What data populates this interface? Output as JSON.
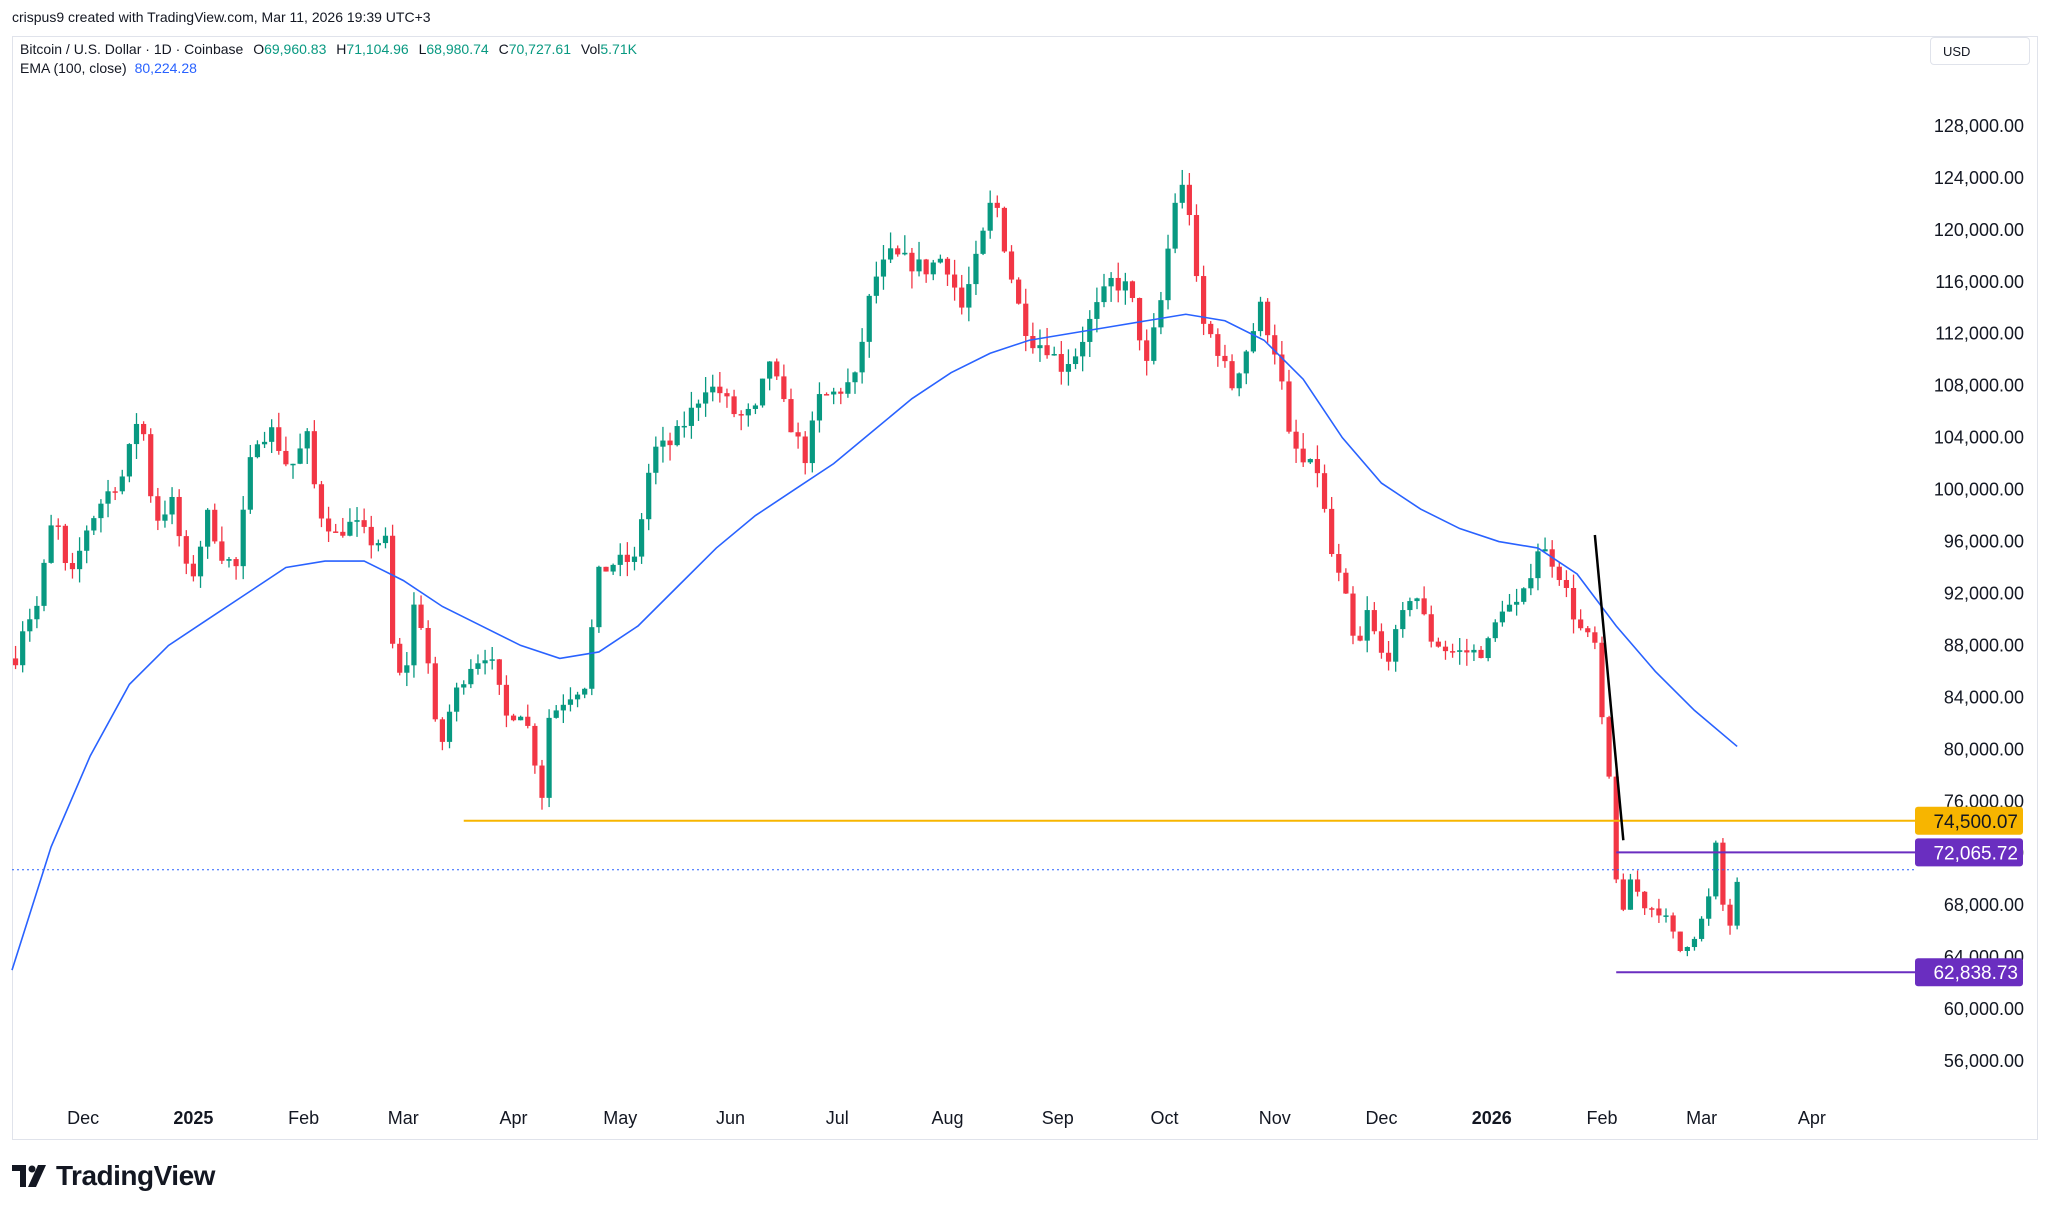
{
  "header": {
    "credit": "crispus9 created with TradingView.com, Mar 11, 2026 19:39 UTC+3"
  },
  "legend": {
    "symbol": "Bitcoin / U.S. Dollar · 1D · Coinbase",
    "open_label": "O",
    "open": "69,960.83",
    "high_label": "H",
    "high": "71,104.96",
    "low_label": "L",
    "low": "68,980.74",
    "close_label": "C",
    "close": "70,727.61",
    "vol_label": "Vol",
    "vol": "5.71K",
    "ema_label": "EMA (100, close)",
    "ema_value": "80,224.28"
  },
  "currency": "USD",
  "footer": {
    "logo_text": "TradingView"
  },
  "colors": {
    "up": "#089981",
    "down": "#f23645",
    "ema": "#2962ff",
    "support": "#f7b500",
    "range": "#6a2ec0",
    "trend": "#000000",
    "last_price": "#2962ff"
  },
  "chart_data": {
    "type": "candlestick",
    "title": "Bitcoin / U.S. Dollar · 1D · Coinbase",
    "ylim": [
      53000,
      132000
    ],
    "y_ticks": [
      "128,000.00",
      "124,000.00",
      "120,000.00",
      "116,000.00",
      "112,000.00",
      "108,000.00",
      "104,000.00",
      "100,000.00",
      "96,000.00",
      "92,000.00",
      "88,000.00",
      "84,000.00",
      "80,000.00",
      "76,000.00",
      "72,000.00",
      "68,000.00",
      "64,000.00",
      "60,000.00",
      "56,000.00"
    ],
    "y_tick_values": [
      128000,
      124000,
      120000,
      116000,
      112000,
      108000,
      104000,
      100000,
      96000,
      92000,
      88000,
      84000,
      80000,
      76000,
      72000,
      68000,
      64000,
      60000,
      56000
    ],
    "x_ticks": [
      {
        "label": "Dec",
        "t": 1733011200,
        "bold": false
      },
      {
        "label": "2025",
        "t": 1735689600,
        "bold": true
      },
      {
        "label": "Feb",
        "t": 1738368000,
        "bold": false
      },
      {
        "label": "Mar",
        "t": 1740787200,
        "bold": false
      },
      {
        "label": "Apr",
        "t": 1743465600,
        "bold": false
      },
      {
        "label": "May",
        "t": 1746057600,
        "bold": false
      },
      {
        "label": "Jun",
        "t": 1748736000,
        "bold": false
      },
      {
        "label": "Jul",
        "t": 1751328000,
        "bold": false
      },
      {
        "label": "Aug",
        "t": 1754006400,
        "bold": false
      },
      {
        "label": "Sep",
        "t": 1756684800,
        "bold": false
      },
      {
        "label": "Oct",
        "t": 1759276800,
        "bold": false
      },
      {
        "label": "Nov",
        "t": 1761955200,
        "bold": false
      },
      {
        "label": "Dec",
        "t": 1764547200,
        "bold": false
      },
      {
        "label": "2026",
        "t": 1767225600,
        "bold": true
      },
      {
        "label": "Feb",
        "t": 1769904000,
        "bold": false
      },
      {
        "label": "Mar",
        "t": 1772323200,
        "bold": false
      },
      {
        "label": "Apr",
        "t": 1775001600,
        "bold": false
      }
    ],
    "x_range": [
      1731283200,
      1777507200
    ],
    "price_path": [
      [
        1731283200,
        87000
      ],
      [
        1731369600,
        89000
      ],
      [
        1731801600,
        91000
      ],
      [
        1732233600,
        98500
      ],
      [
        1732579200,
        92500
      ],
      [
        1733011200,
        97000
      ],
      [
        1733443200,
        99500
      ],
      [
        1733875200,
        101000
      ],
      [
        1734134400,
        104000
      ],
      [
        1734307200,
        106500
      ],
      [
        1734652800,
        97500
      ],
      [
        1735084800,
        99000
      ],
      [
        1735516800,
        92500
      ],
      [
        1735948800,
        98000
      ],
      [
        1736294400,
        95000
      ],
      [
        1736640000,
        94000
      ],
      [
        1737072000,
        104000
      ],
      [
        1737504000,
        104500
      ],
      [
        1737936000,
        101500
      ],
      [
        1738368000,
        104000
      ],
      [
        1738627200,
        98500
      ],
      [
        1739059200,
        96500
      ],
      [
        1739491200,
        97500
      ],
      [
        1739923200,
        96000
      ],
      [
        1740268800,
        96000
      ],
      [
        1740441600,
        88000
      ],
      [
        1740700800,
        84500
      ],
      [
        1740960000,
        91000
      ],
      [
        1741219200,
        89000
      ],
      [
        1741564800,
        79500
      ],
      [
        1741910400,
        84000
      ],
      [
        1742342400,
        86500
      ],
      [
        1742774400,
        87500
      ],
      [
        1743206400,
        82500
      ],
      [
        1743638400,
        83000
      ],
      [
        1744070400,
        76500
      ],
      [
        1744243200,
        82500
      ],
      [
        1744675200,
        84000
      ],
      [
        1745107200,
        85000
      ],
      [
        1745452800,
        93500
      ],
      [
        1745884800,
        94500
      ],
      [
        1746316800,
        94500
      ],
      [
        1746748800,
        103000
      ],
      [
        1747180800,
        103500
      ],
      [
        1747612800,
        105500
      ],
      [
        1748044800,
        108000
      ],
      [
        1748390400,
        107500
      ],
      [
        1748822400,
        105500
      ],
      [
        1749254400,
        106000
      ],
      [
        1749600000,
        110000
      ],
      [
        1750032000,
        105500
      ],
      [
        1750464000,
        102500
      ],
      [
        1750809600,
        107000
      ],
      [
        1751241600,
        107500
      ],
      [
        1751673600,
        108500
      ],
      [
        1752105600,
        116000
      ],
      [
        1752537600,
        118000
      ],
      [
        1752969600,
        117500
      ],
      [
        1753401600,
        117000
      ],
      [
        1753833600,
        118000
      ],
      [
        1754265600,
        114000
      ],
      [
        1754524800,
        116500
      ],
      [
        1754870400,
        120500
      ],
      [
        1755043200,
        123000
      ],
      [
        1755388800,
        117500
      ],
      [
        1755734400,
        113000
      ],
      [
        1755993600,
        111500
      ],
      [
        1756339200,
        111000
      ],
      [
        1756684800,
        109500
      ],
      [
        1757030400,
        110500
      ],
      [
        1757462400,
        113500
      ],
      [
        1757894400,
        116000
      ],
      [
        1758326400,
        115500
      ],
      [
        1758758400,
        109500
      ],
      [
        1759104000,
        114500
      ],
      [
        1759363200,
        120500
      ],
      [
        1759536000,
        124000
      ],
      [
        1759795200,
        121500
      ],
      [
        1760054400,
        113000
      ],
      [
        1760400000,
        111500
      ],
      [
        1760832000,
        108000
      ],
      [
        1761264000,
        111500
      ],
      [
        1761523200,
        114000
      ],
      [
        1761955200,
        110000
      ],
      [
        1762214400,
        104000
      ],
      [
        1762560000,
        102000
      ],
      [
        1762905600,
        101500
      ],
      [
        1763251200,
        95000
      ],
      [
        1763596800,
        91500
      ],
      [
        1763856000,
        87000
      ],
      [
        1764115200,
        90500
      ],
      [
        1764547200,
        86500
      ],
      [
        1764892800,
        89500
      ],
      [
        1765238400,
        92500
      ],
      [
        1765670400,
        88500
      ],
      [
        1766102400,
        87500
      ],
      [
        1766534400,
        87500
      ],
      [
        1766966400,
        87500
      ],
      [
        1767398400,
        91000
      ],
      [
        1767830400,
        91000
      ],
      [
        1768262400,
        95500
      ],
      [
        1768521600,
        95000
      ],
      [
        1768867200,
        93000
      ],
      [
        1769212800,
        89500
      ],
      [
        1769644800,
        88000
      ],
      [
        1769904000,
        79000
      ],
      [
        1770076800,
        76500
      ],
      [
        1770249600,
        64000
      ],
      [
        1770422400,
        70500
      ],
      [
        1770854400,
        68000
      ],
      [
        1771286400,
        67500
      ],
      [
        1771718400,
        64500
      ],
      [
        1772150400,
        66000
      ],
      [
        1772409600,
        68500
      ],
      [
        1772582400,
        72500
      ],
      [
        1772755200,
        68000
      ],
      [
        1772928000,
        66500
      ],
      [
        1773100800,
        69500
      ],
      [
        1773187200,
        70727.61
      ]
    ],
    "ema_path": [
      [
        1731283200,
        63000
      ],
      [
        1732233600,
        72500
      ],
      [
        1733184000,
        79500
      ],
      [
        1734134400,
        85000
      ],
      [
        1735084800,
        88000
      ],
      [
        1736035200,
        90000
      ],
      [
        1736985600,
        92000
      ],
      [
        1737936000,
        94000
      ],
      [
        1738886400,
        94500
      ],
      [
        1739836800,
        94500
      ],
      [
        1740787200,
        93000
      ],
      [
        1741737600,
        91000
      ],
      [
        1742688000,
        89500
      ],
      [
        1743638400,
        88000
      ],
      [
        1744588800,
        87000
      ],
      [
        1745539200,
        87500
      ],
      [
        1746489600,
        89500
      ],
      [
        1747440000,
        92500
      ],
      [
        1748390400,
        95500
      ],
      [
        1749340800,
        98000
      ],
      [
        1750291200,
        100000
      ],
      [
        1751241600,
        102000
      ],
      [
        1752192000,
        104500
      ],
      [
        1753142400,
        107000
      ],
      [
        1754092800,
        109000
      ],
      [
        1755043200,
        110500
      ],
      [
        1755993600,
        111500
      ],
      [
        1756944000,
        112000
      ],
      [
        1757894400,
        112500
      ],
      [
        1758844800,
        113000
      ],
      [
        1759795200,
        113500
      ],
      [
        1760745600,
        113000
      ],
      [
        1761696000,
        111500
      ],
      [
        1762646400,
        108500
      ],
      [
        1763596800,
        104000
      ],
      [
        1764547200,
        100500
      ],
      [
        1765497600,
        98500
      ],
      [
        1766448000,
        97000
      ],
      [
        1767398400,
        96000
      ],
      [
        1768348800,
        95500
      ],
      [
        1769299200,
        93500
      ],
      [
        1770249600,
        89500
      ],
      [
        1771200000,
        86000
      ],
      [
        1772150400,
        83000
      ],
      [
        1773187200,
        80224.28
      ]
    ],
    "annotations": {
      "support_level": {
        "value": 74500.07,
        "label": "74,500.07",
        "t_start": 1742256000
      },
      "range_high": {
        "value": 72065.72,
        "label": "72,065.72",
        "t_start": 1770249600
      },
      "range_low": {
        "value": 62838.73,
        "label": "62,838.73",
        "t_start": 1770249600
      },
      "last_price": 70727.61,
      "trend_line": [
        [
          1769731200,
          96500
        ],
        [
          1770422400,
          73000
        ]
      ]
    }
  }
}
